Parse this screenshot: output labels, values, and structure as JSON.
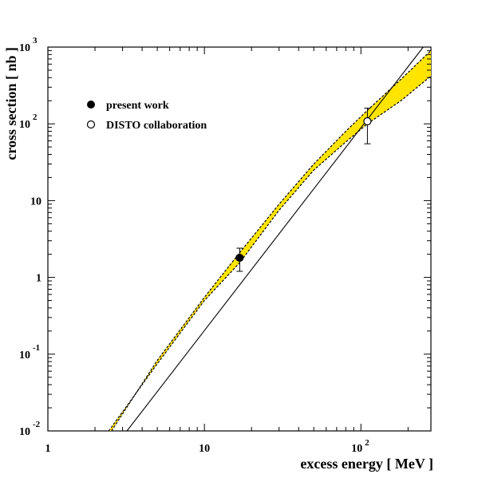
{
  "chart_data": {
    "type": "scatter",
    "xlabel": "excess energy [ MeV ]",
    "ylabel": "cross section [ nb ]",
    "xscale": "log",
    "yscale": "log",
    "xlim": [
      1,
      280
    ],
    "ylim": [
      0.01,
      1000
    ],
    "x_ticks": [
      {
        "value": 1,
        "base": "1",
        "exp": ""
      },
      {
        "value": 10,
        "base": "10",
        "exp": ""
      },
      {
        "value": 100,
        "base": "10",
        "exp": "2"
      }
    ],
    "y_ticks": [
      {
        "value": 0.01,
        "base": "10",
        "exp": "-2"
      },
      {
        "value": 0.1,
        "base": "10",
        "exp": "-1"
      },
      {
        "value": 1,
        "base": "1",
        "exp": ""
      },
      {
        "value": 10,
        "base": "10",
        "exp": ""
      },
      {
        "value": 100,
        "base": "10",
        "exp": "2"
      },
      {
        "value": 1000,
        "base": "10",
        "exp": "3"
      }
    ],
    "legend": {
      "placement": "top-left",
      "entries": [
        {
          "label": "present work",
          "marker": "filled-circle"
        },
        {
          "label": "DISTO collaboration",
          "marker": "open-circle"
        }
      ]
    },
    "series": [
      {
        "name": "present work",
        "marker": "filled-circle",
        "points": [
          {
            "x": 16.8,
            "y": 1.8,
            "y_low": 1.2,
            "y_high": 2.4
          }
        ]
      },
      {
        "name": "DISTO collaboration",
        "marker": "open-circle",
        "points": [
          {
            "x": 110,
            "y": 108,
            "y_low": 55,
            "y_high": 160
          }
        ]
      }
    ],
    "curves": [
      {
        "style": "solid",
        "color": "#000000",
        "points": [
          [
            3.2,
            0.01
          ],
          [
            250,
            1000
          ]
        ]
      }
    ],
    "band": {
      "fill": "#ffe400",
      "edge_style": "dashed",
      "upper": [
        [
          2.55,
          0.01
        ],
        [
          5,
          0.083
        ],
        [
          10,
          0.55
        ],
        [
          16.8,
          2.1
        ],
        [
          30,
          9.0
        ],
        [
          50,
          30
        ],
        [
          80,
          80
        ],
        [
          110,
          150
        ],
        [
          180,
          380
        ],
        [
          280,
          900
        ]
      ],
      "lower": [
        [
          2.45,
          0.01
        ],
        [
          5,
          0.075
        ],
        [
          10,
          0.5
        ],
        [
          16.8,
          1.55
        ],
        [
          30,
          7.5
        ],
        [
          50,
          25
        ],
        [
          80,
          58
        ],
        [
          110,
          100
        ],
        [
          180,
          200
        ],
        [
          280,
          420
        ]
      ]
    },
    "grid": false
  }
}
